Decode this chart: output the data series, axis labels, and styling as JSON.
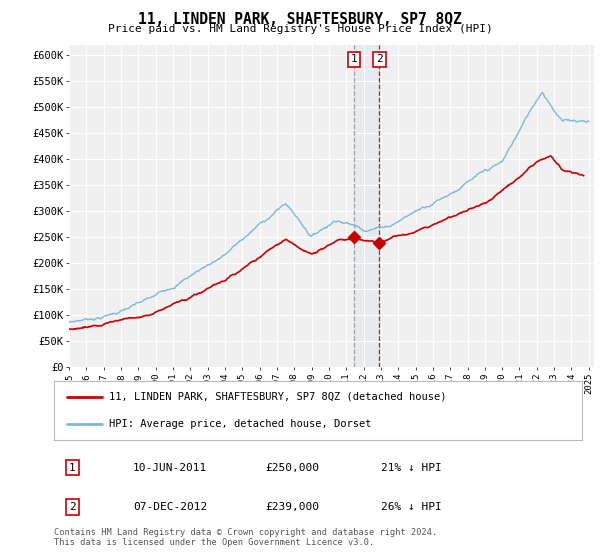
{
  "title": "11, LINDEN PARK, SHAFTESBURY, SP7 8QZ",
  "subtitle": "Price paid vs. HM Land Registry's House Price Index (HPI)",
  "ylim": [
    0,
    620000
  ],
  "yticks": [
    0,
    50000,
    100000,
    150000,
    200000,
    250000,
    300000,
    350000,
    400000,
    450000,
    500000,
    550000,
    600000
  ],
  "ytick_labels": [
    "£0",
    "£50K",
    "£100K",
    "£150K",
    "£200K",
    "£250K",
    "£300K",
    "£350K",
    "£400K",
    "£450K",
    "£500K",
    "£550K",
    "£600K"
  ],
  "x_start_year": 1995,
  "x_end_year": 2025,
  "hpi_color": "#7fb8d8",
  "price_color": "#cc0000",
  "transaction1_date": 2011.44,
  "transaction1_price": 250000,
  "transaction1_label": "1",
  "transaction2_date": 2012.92,
  "transaction2_price": 239000,
  "transaction2_label": "2",
  "legend_entries": [
    "11, LINDEN PARK, SHAFTESBURY, SP7 8QZ (detached house)",
    "HPI: Average price, detached house, Dorset"
  ],
  "table_entries": [
    {
      "num": "1",
      "date": "10-JUN-2011",
      "price": "£250,000",
      "hpi": "21% ↓ HPI"
    },
    {
      "num": "2",
      "date": "07-DEC-2012",
      "price": "£239,000",
      "hpi": "26% ↓ HPI"
    }
  ],
  "footnote": "Contains HM Land Registry data © Crown copyright and database right 2024.\nThis data is licensed under the Open Government Licence v3.0.",
  "background_color": "#ffffff",
  "plot_bg_color": "#f0f0f0",
  "grid_color": "#ffffff"
}
